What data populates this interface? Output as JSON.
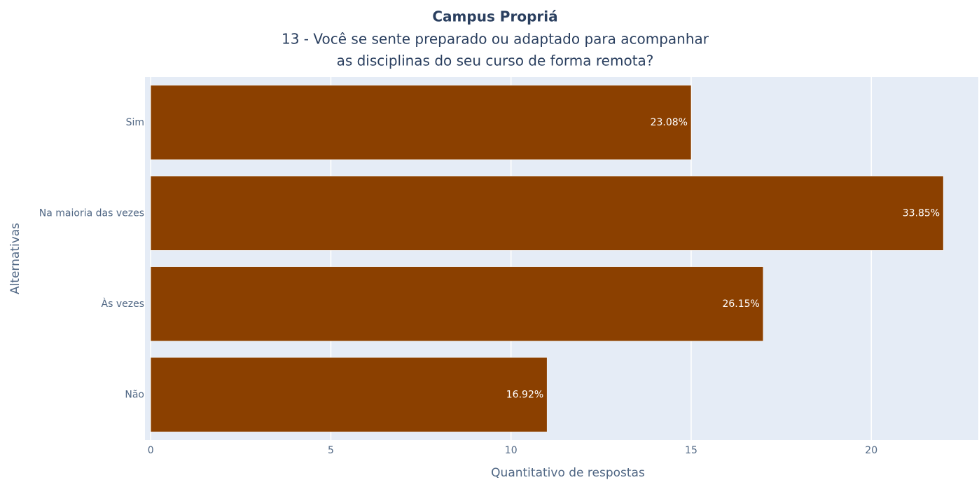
{
  "chart_data": {
    "type": "bar",
    "orientation": "horizontal",
    "title": "Campus Propriá",
    "subtitle": [
      "13 - Você se sente preparado ou adaptado para acompanhar",
      "as disciplinas do seu curso de forma remota?"
    ],
    "x_label": "Quantitativo de respostas",
    "y_label": "Alternativas",
    "categories": [
      "Sim",
      "Na maioria das vezes",
      "Às vezes",
      "Não"
    ],
    "values": [
      15,
      22,
      17,
      11
    ],
    "text_labels": [
      "23.08%",
      "33.85%",
      "26.15%",
      "16.92%"
    ],
    "color": "#8b4000",
    "xlim": [
      -0.16,
      22.97
    ],
    "xticks": [
      0,
      5,
      10,
      15,
      20
    ],
    "grid": true
  }
}
